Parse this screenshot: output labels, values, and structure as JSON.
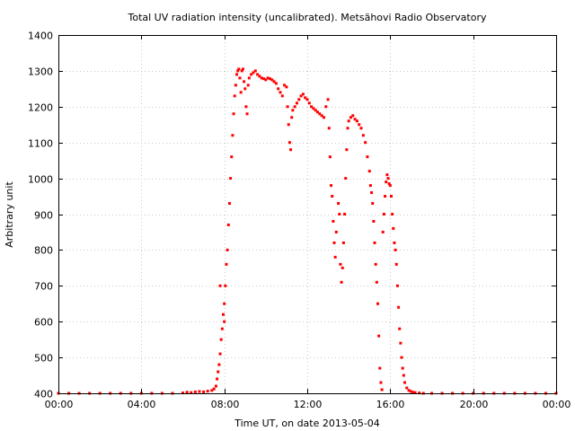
{
  "chart_data": {
    "type": "scatter",
    "title": "Total UV radiation intensity (uncalibrated). Metsähovi Radio Observatory",
    "xlabel": "Time UT, on date 2013-05-04",
    "ylabel": "Arbitrary unit",
    "xlim": [
      0,
      24
    ],
    "ylim": [
      400,
      1400
    ],
    "x_ticks": [
      0,
      4,
      8,
      12,
      16,
      20,
      24
    ],
    "x_tick_labels": [
      "00:00",
      "04:00",
      "08:00",
      "12:00",
      "16:00",
      "20:00",
      "00:00"
    ],
    "y_ticks": [
      400,
      500,
      600,
      700,
      800,
      900,
      1000,
      1100,
      1200,
      1300,
      1400
    ],
    "y_tick_labels": [
      "400",
      "500",
      "600",
      "700",
      "800",
      "900",
      "1000",
      "1100",
      "1200",
      "1300",
      "1400"
    ],
    "grid": true,
    "series": [
      {
        "color": "#ff0000",
        "points": [
          [
            0.0,
            400
          ],
          [
            0.5,
            400
          ],
          [
            1.0,
            400
          ],
          [
            1.5,
            400
          ],
          [
            2.0,
            400
          ],
          [
            2.5,
            400
          ],
          [
            3.0,
            400
          ],
          [
            3.5,
            400
          ],
          [
            4.0,
            400
          ],
          [
            4.5,
            400
          ],
          [
            5.0,
            400
          ],
          [
            5.5,
            400
          ],
          [
            6.0,
            401
          ],
          [
            6.2,
            403
          ],
          [
            6.4,
            402
          ],
          [
            6.6,
            404
          ],
          [
            6.8,
            405
          ],
          [
            7.0,
            404
          ],
          [
            7.2,
            406
          ],
          [
            7.4,
            408
          ],
          [
            7.5,
            412
          ],
          [
            7.6,
            420
          ],
          [
            7.65,
            440
          ],
          [
            7.7,
            460
          ],
          [
            7.75,
            480
          ],
          [
            7.8,
            510
          ],
          [
            7.8,
            700
          ],
          [
            7.85,
            550
          ],
          [
            7.9,
            580
          ],
          [
            7.95,
            620
          ],
          [
            8.0,
            650
          ],
          [
            8.0,
            600
          ],
          [
            8.05,
            700
          ],
          [
            8.1,
            760
          ],
          [
            8.15,
            800
          ],
          [
            8.2,
            870
          ],
          [
            8.25,
            930
          ],
          [
            8.3,
            1000
          ],
          [
            8.35,
            1060
          ],
          [
            8.4,
            1120
          ],
          [
            8.45,
            1180
          ],
          [
            8.5,
            1230
          ],
          [
            8.55,
            1260
          ],
          [
            8.6,
            1290
          ],
          [
            8.65,
            1300
          ],
          [
            8.7,
            1305
          ],
          [
            8.75,
            1280
          ],
          [
            8.8,
            1240
          ],
          [
            8.85,
            1300
          ],
          [
            8.9,
            1305
          ],
          [
            8.95,
            1270
          ],
          [
            9.0,
            1250
          ],
          [
            9.05,
            1200
          ],
          [
            9.1,
            1180
          ],
          [
            9.15,
            1260
          ],
          [
            9.2,
            1280
          ],
          [
            9.3,
            1290
          ],
          [
            9.4,
            1295
          ],
          [
            9.5,
            1300
          ],
          [
            9.6,
            1290
          ],
          [
            9.7,
            1285
          ],
          [
            9.8,
            1280
          ],
          [
            9.9,
            1278
          ],
          [
            10.0,
            1275
          ],
          [
            10.1,
            1280
          ],
          [
            10.2,
            1278
          ],
          [
            10.3,
            1275
          ],
          [
            10.4,
            1270
          ],
          [
            10.5,
            1265
          ],
          [
            10.6,
            1250
          ],
          [
            10.7,
            1240
          ],
          [
            10.8,
            1230
          ],
          [
            10.9,
            1260
          ],
          [
            11.0,
            1255
          ],
          [
            11.05,
            1200
          ],
          [
            11.1,
            1150
          ],
          [
            11.15,
            1100
          ],
          [
            11.2,
            1080
          ],
          [
            11.25,
            1170
          ],
          [
            11.3,
            1190
          ],
          [
            11.4,
            1200
          ],
          [
            11.5,
            1210
          ],
          [
            11.6,
            1220
          ],
          [
            11.7,
            1230
          ],
          [
            11.8,
            1235
          ],
          [
            11.9,
            1225
          ],
          [
            12.0,
            1220
          ],
          [
            12.1,
            1210
          ],
          [
            12.2,
            1200
          ],
          [
            12.3,
            1195
          ],
          [
            12.4,
            1190
          ],
          [
            12.5,
            1185
          ],
          [
            12.6,
            1180
          ],
          [
            12.7,
            1175
          ],
          [
            12.8,
            1170
          ],
          [
            12.9,
            1200
          ],
          [
            13.0,
            1220
          ],
          [
            13.05,
            1140
          ],
          [
            13.1,
            1060
          ],
          [
            13.15,
            980
          ],
          [
            13.2,
            950
          ],
          [
            13.25,
            880
          ],
          [
            13.3,
            820
          ],
          [
            13.35,
            780
          ],
          [
            13.4,
            850
          ],
          [
            13.5,
            930
          ],
          [
            13.55,
            900
          ],
          [
            13.6,
            760
          ],
          [
            13.65,
            710
          ],
          [
            13.7,
            750
          ],
          [
            13.75,
            820
          ],
          [
            13.8,
            900
          ],
          [
            13.85,
            1000
          ],
          [
            13.9,
            1080
          ],
          [
            13.95,
            1140
          ],
          [
            14.0,
            1160
          ],
          [
            14.1,
            1170
          ],
          [
            14.2,
            1175
          ],
          [
            14.3,
            1165
          ],
          [
            14.4,
            1160
          ],
          [
            14.5,
            1150
          ],
          [
            14.6,
            1140
          ],
          [
            14.7,
            1120
          ],
          [
            14.8,
            1100
          ],
          [
            14.9,
            1060
          ],
          [
            15.0,
            1020
          ],
          [
            15.05,
            980
          ],
          [
            15.1,
            960
          ],
          [
            15.15,
            930
          ],
          [
            15.2,
            880
          ],
          [
            15.25,
            820
          ],
          [
            15.3,
            760
          ],
          [
            15.35,
            710
          ],
          [
            15.4,
            650
          ],
          [
            15.45,
            560
          ],
          [
            15.5,
            470
          ],
          [
            15.55,
            430
          ],
          [
            15.6,
            410
          ],
          [
            15.65,
            850
          ],
          [
            15.7,
            900
          ],
          [
            15.75,
            950
          ],
          [
            15.8,
            990
          ],
          [
            15.85,
            1010
          ],
          [
            15.9,
            1000
          ],
          [
            15.95,
            985
          ],
          [
            16.0,
            980
          ],
          [
            16.05,
            950
          ],
          [
            16.1,
            900
          ],
          [
            16.15,
            860
          ],
          [
            16.2,
            820
          ],
          [
            16.25,
            800
          ],
          [
            16.3,
            760
          ],
          [
            16.35,
            700
          ],
          [
            16.4,
            640
          ],
          [
            16.45,
            580
          ],
          [
            16.5,
            540
          ],
          [
            16.55,
            500
          ],
          [
            16.6,
            470
          ],
          [
            16.65,
            450
          ],
          [
            16.7,
            430
          ],
          [
            16.8,
            415
          ],
          [
            16.9,
            408
          ],
          [
            17.0,
            405
          ],
          [
            17.1,
            403
          ],
          [
            17.2,
            402
          ],
          [
            17.4,
            401
          ],
          [
            17.6,
            400
          ],
          [
            18.0,
            400
          ],
          [
            18.5,
            400
          ],
          [
            19.0,
            400
          ],
          [
            19.5,
            400
          ],
          [
            20.0,
            400
          ],
          [
            20.5,
            400
          ],
          [
            21.0,
            400
          ],
          [
            21.5,
            400
          ],
          [
            22.0,
            400
          ],
          [
            22.5,
            400
          ],
          [
            23.0,
            400
          ],
          [
            23.5,
            400
          ],
          [
            24.0,
            400
          ]
        ]
      }
    ]
  }
}
